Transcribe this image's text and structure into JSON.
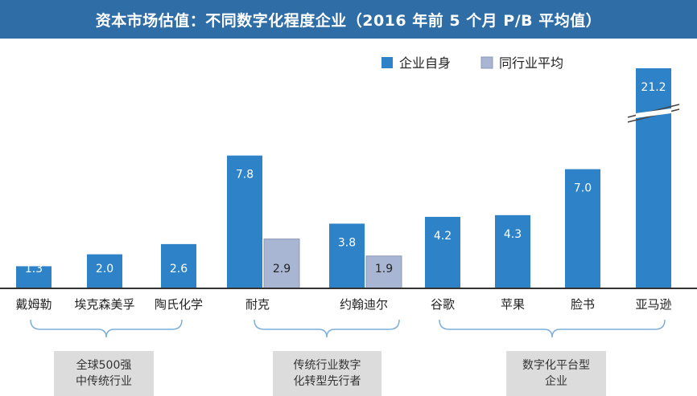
{
  "title": "资本市场估值：不同数字化程度企业（2016 年前 5 个月 P/B 平均值）",
  "chart_data": {
    "type": "bar",
    "categories": [
      "戴姆勒",
      "埃克森美孚",
      "陶氏化学",
      "耐克",
      "约翰迪尔",
      "谷歌",
      "苹果",
      "脸书",
      "亚马逊"
    ],
    "series": [
      {
        "name": "企业自身",
        "values": [
          1.3,
          2.0,
          2.6,
          7.8,
          3.8,
          4.2,
          4.3,
          7.0,
          21.2
        ],
        "color": "#2e82c8"
      },
      {
        "name": "同行业平均",
        "values": [
          null,
          null,
          null,
          2.9,
          1.9,
          null,
          null,
          null,
          null
        ],
        "color": "#a8b6d4"
      }
    ],
    "value_labels": {
      "企业自身": [
        "1.3",
        "2.0",
        "2.6",
        "7.8",
        "3.8",
        "4.2",
        "4.3",
        "7.0",
        "21.2"
      ],
      "同行业平均": [
        null,
        null,
        null,
        "2.9",
        "1.9",
        null,
        null,
        null,
        null
      ]
    },
    "axis_break": {
      "category": "亚马逊",
      "note": "broken bar (value off scale)"
    },
    "legend_position": "top-right",
    "groups": [
      {
        "label_lines": [
          "全球500强",
          "中传统行业"
        ],
        "categories": [
          "戴姆勒",
          "埃克森美孚",
          "陶氏化学"
        ]
      },
      {
        "label_lines": [
          "传统行业数字",
          "化转型先行者"
        ],
        "categories": [
          "耐克",
          "约翰迪尔"
        ]
      },
      {
        "label_lines": [
          "数字化平台型",
          "企业"
        ],
        "categories": [
          "谷歌",
          "苹果",
          "脸书",
          "亚马逊"
        ]
      }
    ]
  }
}
